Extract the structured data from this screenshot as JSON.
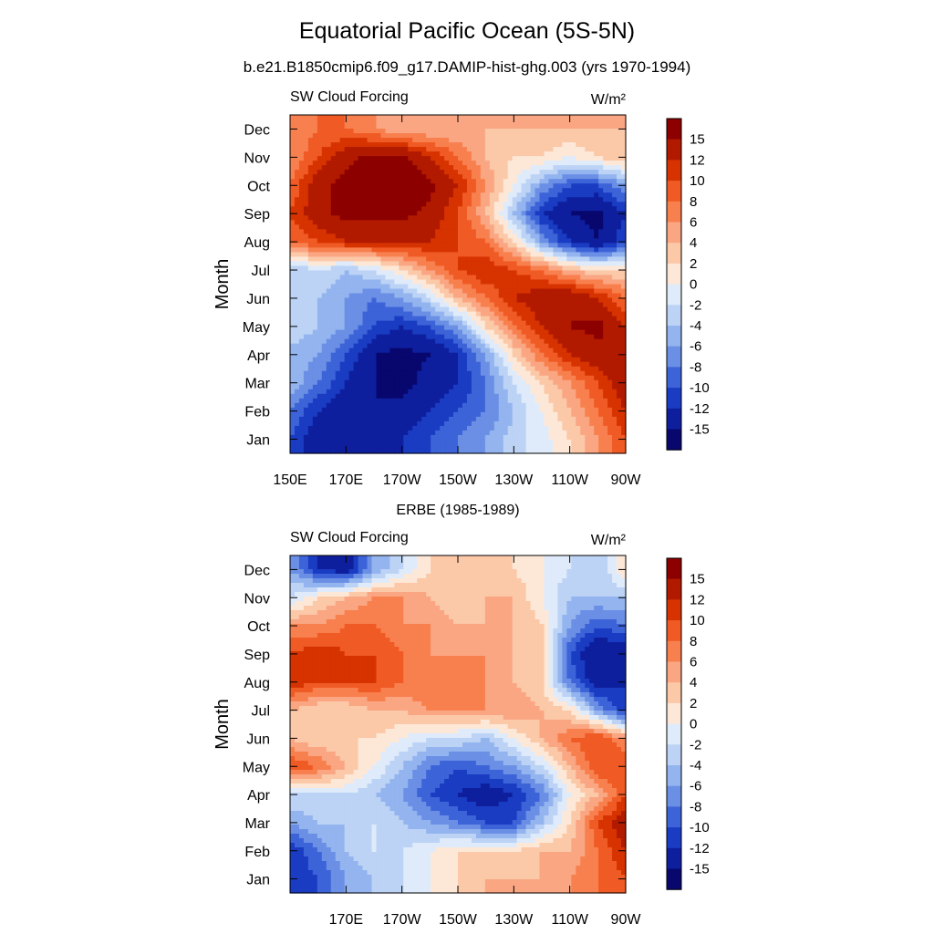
{
  "figure": {
    "title": "Equatorial Pacific Ocean (5S-5N)",
    "subtitle": "b.e21.B1850cmip6.f09_g17.DAMIP-hist-ghg.003 (yrs 1970-1994)"
  },
  "colorbar": {
    "levels": [
      "15",
      "12",
      "10",
      "8",
      "6",
      "4",
      "2",
      "0",
      "-2",
      "-4",
      "-6",
      "-8",
      "-10",
      "-12",
      "-15"
    ],
    "colors": [
      "#8c0000",
      "#b21a00",
      "#d63300",
      "#f05a24",
      "#f8804f",
      "#faa683",
      "#fbc8a8",
      "#fde8d8",
      "#dfebfa",
      "#bcd3f5",
      "#93b4ee",
      "#6a8fe5",
      "#3d63d8",
      "#1a3cc2",
      "#0e1f9e",
      "#07076e"
    ]
  },
  "chart_data": [
    {
      "type": "heatmap",
      "title": "",
      "left_label": "SW Cloud Forcing",
      "units": "W/m²",
      "ylabel": "Month",
      "xlabel": "",
      "x_ticks": [
        "150E",
        "170E",
        "170W",
        "150W",
        "130W",
        "110W",
        "90W"
      ],
      "y_ticks": [
        "Jan",
        "Feb",
        "Mar",
        "Apr",
        "May",
        "Jun",
        "Jul",
        "Aug",
        "Sep",
        "Oct",
        "Nov",
        "Dec"
      ],
      "x": [
        150,
        160,
        170,
        180,
        190,
        200,
        210,
        220,
        230,
        240,
        250,
        260,
        270
      ],
      "y": [
        1,
        2,
        3,
        4,
        5,
        6,
        7,
        8,
        9,
        10,
        11,
        12
      ],
      "z": [
        [
          -10,
          -14,
          -15,
          -14,
          -12,
          -10,
          -8,
          -6,
          -3,
          -1,
          2,
          6,
          10
        ],
        [
          -8,
          -12,
          -14,
          -15,
          -14,
          -12,
          -10,
          -8,
          -4,
          0,
          4,
          8,
          12
        ],
        [
          -4,
          -8,
          -12,
          -15,
          -16,
          -14,
          -12,
          -8,
          -2,
          2,
          6,
          10,
          14
        ],
        [
          -5,
          -6,
          -10,
          -15,
          -16,
          -15,
          -12,
          -6,
          2,
          8,
          12,
          14,
          15
        ],
        [
          -2,
          -4,
          -6,
          -10,
          -12,
          -10,
          -6,
          2,
          8,
          12,
          15,
          16,
          12
        ],
        [
          -3,
          -4,
          -6,
          -8,
          -6,
          -2,
          4,
          8,
          12,
          14,
          15,
          12,
          8
        ],
        [
          -4,
          -2,
          -4,
          -2,
          2,
          6,
          10,
          12,
          10,
          8,
          4,
          2,
          2
        ],
        [
          8,
          10,
          12,
          12,
          12,
          12,
          10,
          8,
          2,
          -6,
          -12,
          -15,
          -10
        ],
        [
          10,
          14,
          16,
          16,
          16,
          14,
          10,
          4,
          -4,
          -12,
          -15,
          -16,
          -12
        ],
        [
          8,
          14,
          16,
          18,
          18,
          16,
          12,
          6,
          0,
          -6,
          -10,
          -10,
          -6
        ],
        [
          6,
          10,
          14,
          16,
          16,
          12,
          8,
          4,
          2,
          2,
          0,
          2,
          4
        ],
        [
          6,
          8,
          8,
          6,
          4,
          4,
          4,
          4,
          4,
          4,
          4,
          4,
          4
        ]
      ]
    },
    {
      "type": "heatmap",
      "title": "ERBE (1985-1989)",
      "left_label": "SW Cloud Forcing",
      "units": "W/m²",
      "ylabel": "Month",
      "xlabel": "",
      "x_ticks": [
        "170E",
        "170W",
        "150W",
        "130W",
        "110W",
        "90W"
      ],
      "y_ticks": [
        "Jan",
        "Feb",
        "Mar",
        "Apr",
        "May",
        "Jun",
        "Jul",
        "Aug",
        "Sep",
        "Oct",
        "Nov",
        "Dec"
      ],
      "x": [
        150,
        160,
        170,
        180,
        190,
        200,
        210,
        220,
        230,
        240,
        250,
        260,
        270
      ],
      "y": [
        1,
        2,
        3,
        4,
        5,
        6,
        7,
        8,
        9,
        10,
        11,
        12
      ],
      "z": [
        [
          -12,
          -10,
          -6,
          -4,
          -2,
          0,
          2,
          4,
          4,
          4,
          6,
          8,
          10
        ],
        [
          -12,
          -8,
          -4,
          -2,
          -2,
          0,
          2,
          2,
          2,
          4,
          4,
          8,
          12
        ],
        [
          -6,
          -4,
          -4,
          -2,
          -4,
          -6,
          -8,
          -10,
          -10,
          -4,
          2,
          10,
          14
        ],
        [
          -2,
          -2,
          -2,
          -4,
          -6,
          -10,
          -12,
          -14,
          -12,
          -8,
          0,
          4,
          10
        ],
        [
          10,
          8,
          4,
          0,
          -4,
          -8,
          -10,
          -8,
          -6,
          -2,
          4,
          10,
          10
        ],
        [
          4,
          2,
          2,
          2,
          0,
          -2,
          -2,
          -4,
          0,
          4,
          8,
          10,
          6
        ],
        [
          4,
          2,
          2,
          4,
          4,
          6,
          6,
          6,
          6,
          4,
          2,
          -6,
          -12
        ],
        [
          12,
          10,
          10,
          10,
          8,
          8,
          8,
          6,
          4,
          2,
          -8,
          -14,
          -12
        ],
        [
          10,
          12,
          10,
          10,
          8,
          6,
          6,
          6,
          4,
          2,
          -10,
          -15,
          -14
        ],
        [
          6,
          6,
          8,
          8,
          6,
          6,
          4,
          4,
          4,
          2,
          -6,
          -10,
          -8
        ],
        [
          -2,
          2,
          4,
          6,
          6,
          4,
          2,
          4,
          4,
          0,
          -4,
          -4,
          -4
        ],
        [
          -6,
          -12,
          -14,
          -6,
          -2,
          2,
          2,
          2,
          2,
          0,
          -2,
          -4,
          2
        ]
      ]
    }
  ]
}
